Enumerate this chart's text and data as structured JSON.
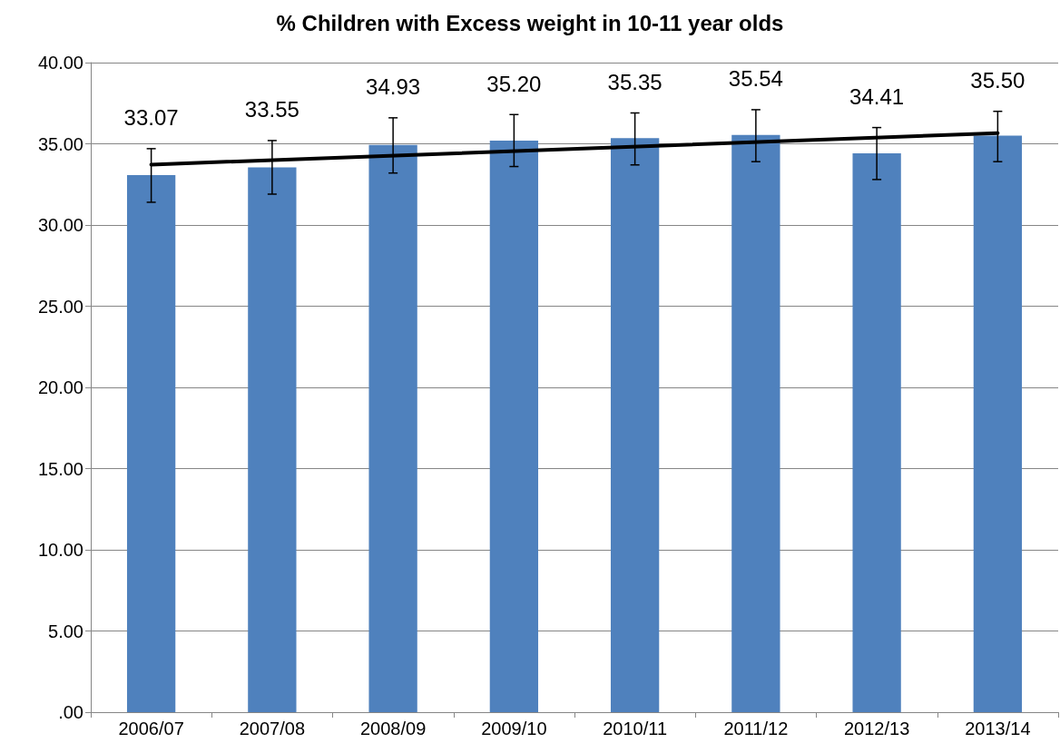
{
  "chart_data": {
    "type": "bar",
    "title": "% Children with Excess weight in 10-11 year olds",
    "categories": [
      "2006/07",
      "2007/08",
      "2008/09",
      "2009/10",
      "2010/11",
      "2011/12",
      "2012/13",
      "2013/14"
    ],
    "series": [
      {
        "color": "#4f81bd",
        "values": [
          33.07,
          33.55,
          34.93,
          35.2,
          35.35,
          35.54,
          34.41,
          35.5
        ],
        "value_labels": [
          "33.07",
          "33.55",
          "34.93",
          "35.20",
          "35.35",
          "35.54",
          "34.41",
          "35.50"
        ],
        "errors": [
          [
            31.4,
            34.7
          ],
          [
            31.9,
            35.2
          ],
          [
            33.2,
            36.6
          ],
          [
            33.6,
            36.8
          ],
          [
            33.7,
            36.9
          ],
          [
            33.9,
            37.1
          ],
          [
            32.8,
            36.0
          ],
          [
            33.9,
            37.0
          ]
        ]
      },
      {
        "type": "line",
        "color": "#000000",
        "x": [
          "2006/07",
          "2013/14"
        ],
        "values": [
          33.72,
          35.66
        ]
      }
    ],
    "marker": "none",
    "line_style": "solid",
    "ylim": [
      0,
      40
    ],
    "yticks": [
      {
        "value": 0,
        "label": ".00"
      },
      {
        "value": 5,
        "label": "5.00"
      },
      {
        "value": 10,
        "label": "10.00"
      },
      {
        "value": 15,
        "label": "15.00"
      },
      {
        "value": 20,
        "label": "20.00"
      },
      {
        "value": 25,
        "label": "25.00"
      },
      {
        "value": 30,
        "label": "30.00"
      },
      {
        "value": 35,
        "label": "35.00"
      },
      {
        "value": 40,
        "label": "40.00"
      }
    ],
    "grid": "y"
  }
}
